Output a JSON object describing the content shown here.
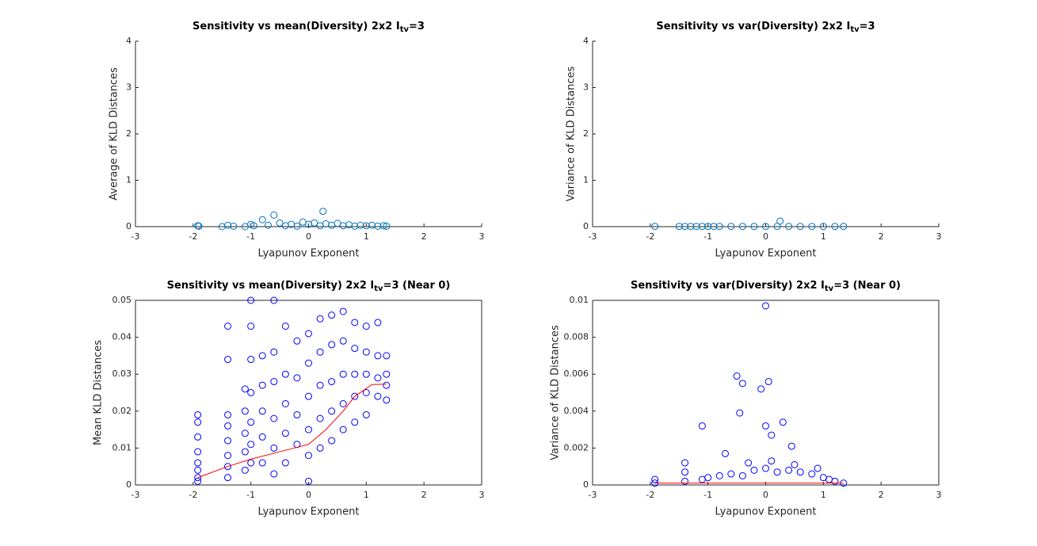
{
  "chart_data": [
    {
      "type": "scatter",
      "title": [
        "Sensitivity vs mean(Diversity) 2x2 I",
        "tv",
        "=3"
      ],
      "xlabel": "Lyapunov Exponent",
      "ylabel": "Average of KLD Distances",
      "xlim": [
        -3,
        3
      ],
      "ylim": [
        0,
        4
      ],
      "xticks": [
        -3,
        -2,
        -1,
        0,
        1,
        2,
        3
      ],
      "yticks": [
        0,
        1,
        2,
        3,
        4
      ],
      "box": false,
      "series": [
        {
          "color": "#0072bd",
          "marker": "circle",
          "x": [
            -1.92,
            -1.9,
            -1.5,
            -1.4,
            -1.3,
            -1.1,
            -1.0,
            -0.95,
            -0.8,
            -0.7,
            -0.6,
            -0.5,
            -0.4,
            -0.3,
            -0.2,
            -0.1,
            0,
            0.1,
            0.2,
            0.25,
            0.3,
            0.4,
            0.5,
            0.6,
            0.7,
            0.8,
            0.9,
            1.0,
            1.1,
            1.2,
            1.3,
            1.35
          ],
          "values": [
            0.02,
            0.01,
            0,
            0.03,
            0.01,
            0,
            0.05,
            0.02,
            0.15,
            0.03,
            0.25,
            0.08,
            0.02,
            0.05,
            0.01,
            0.1,
            0.05,
            0.08,
            0.02,
            0.33,
            0.06,
            0.03,
            0.07,
            0.02,
            0.04,
            0.01,
            0.03,
            0.02,
            0.03,
            0.01,
            0.02,
            0.01
          ]
        }
      ]
    },
    {
      "type": "scatter",
      "title": [
        "Sensitivity vs var(Diversity) 2x2 I",
        "tv",
        "=3"
      ],
      "xlabel": "Lyapunov Exponent",
      "ylabel": "Variance of KLD Distances",
      "xlim": [
        -3,
        3
      ],
      "ylim": [
        0,
        4
      ],
      "xticks": [
        -3,
        -2,
        -1,
        0,
        1,
        2,
        3
      ],
      "yticks": [
        0,
        1,
        2,
        3,
        4
      ],
      "box": false,
      "series": [
        {
          "color": "#0072bd",
          "marker": "circle",
          "x": [
            -1.92,
            -1.5,
            -1.4,
            -1.3,
            -1.2,
            -1.1,
            -1.0,
            -0.9,
            -0.8,
            -0.6,
            -0.4,
            -0.2,
            0,
            0.2,
            0.25,
            0.4,
            0.6,
            0.8,
            1.0,
            1.2,
            1.35
          ],
          "values": [
            0.005,
            0.005,
            0.005,
            0.005,
            0.005,
            0.005,
            0.005,
            0.005,
            0.005,
            0.005,
            0.005,
            0.005,
            0.005,
            0.005,
            0.12,
            0.005,
            0.005,
            0.005,
            0.005,
            0.005,
            0.005
          ]
        }
      ]
    },
    {
      "type": "scatter",
      "title": [
        "Sensitivity vs mean(Diversity) 2x2 I",
        "tv",
        "=3 (Near 0)"
      ],
      "xlabel": "Lyapunov Exponent",
      "ylabel": "Mean KLD Distances",
      "xlim": [
        -3,
        3
      ],
      "ylim": [
        0,
        0.05
      ],
      "xticks": [
        -3,
        -2,
        -1,
        0,
        1,
        2,
        3
      ],
      "yticks": [
        0,
        0.01,
        0.02,
        0.03,
        0.04,
        0.05
      ],
      "box": true,
      "series": [
        {
          "color": "#0000ff",
          "marker": "circle",
          "x": [
            -1.92,
            -1.92,
            -1.92,
            -1.92,
            -1.92,
            -1.92,
            -1.92,
            -1.92,
            -1.4,
            -1.4,
            -1.4,
            -1.4,
            -1.4,
            -1.4,
            -1.4,
            -1.4,
            -1.1,
            -1.1,
            -1.1,
            -1.1,
            -1.1,
            -1.0,
            -1.0,
            -1.0,
            -1.0,
            -1.0,
            -1.0,
            -1.0,
            -0.8,
            -0.8,
            -0.8,
            -0.8,
            -0.8,
            -0.6,
            -0.6,
            -0.6,
            -0.6,
            -0.6,
            -0.6,
            -0.4,
            -0.4,
            -0.4,
            -0.4,
            -0.4,
            -0.2,
            -0.2,
            -0.2,
            -0.2,
            0,
            0,
            0,
            0,
            0,
            0,
            0.2,
            0.2,
            0.2,
            0.2,
            0.2,
            0.4,
            0.4,
            0.4,
            0.4,
            0.4,
            0.6,
            0.6,
            0.6,
            0.6,
            0.6,
            0.8,
            0.8,
            0.8,
            0.8,
            0.8,
            1.0,
            1.0,
            1.0,
            1.0,
            1.0,
            1.2,
            1.2,
            1.2,
            1.2,
            1.35,
            1.35,
            1.35,
            1.35
          ],
          "values": [
            0.019,
            0.017,
            0.013,
            0.009,
            0.006,
            0.004,
            0.002,
            0.001,
            0.043,
            0.034,
            0.019,
            0.016,
            0.012,
            0.008,
            0.005,
            0.002,
            0.026,
            0.02,
            0.014,
            0.009,
            0.004,
            0.05,
            0.043,
            0.034,
            0.025,
            0.017,
            0.011,
            0.006,
            0.035,
            0.027,
            0.02,
            0.013,
            0.006,
            0.05,
            0.036,
            0.028,
            0.018,
            0.01,
            0.003,
            0.043,
            0.03,
            0.022,
            0.014,
            0.006,
            0.039,
            0.029,
            0.019,
            0.011,
            0.041,
            0.033,
            0.024,
            0.015,
            0.008,
            0.001,
            0.045,
            0.036,
            0.027,
            0.018,
            0.01,
            0.046,
            0.038,
            0.028,
            0.02,
            0.012,
            0.047,
            0.039,
            0.03,
            0.022,
            0.015,
            0.044,
            0.037,
            0.03,
            0.024,
            0.017,
            0.043,
            0.036,
            0.03,
            0.025,
            0.019,
            0.044,
            0.035,
            0.029,
            0.024,
            0.035,
            0.03,
            0.027,
            0.023
          ]
        },
        {
          "color": "#ff0000",
          "marker": "line",
          "x": [
            -1.92,
            -1.4,
            -1.0,
            -0.5,
            0,
            0.3,
            0.6,
            0.8,
            1.1,
            1.35
          ],
          "values": [
            0.002,
            0.005,
            0.007,
            0.009,
            0.011,
            0.015,
            0.02,
            0.024,
            0.0272,
            0.0273
          ]
        }
      ]
    },
    {
      "type": "scatter",
      "title": [
        "Sensitivity vs var(Diversity) 2x2 I",
        "tv",
        "=3 (Near 0)"
      ],
      "xlabel": "Lyapunov Exponent",
      "ylabel": "Variance of KLD Distances",
      "xlim": [
        -3,
        3
      ],
      "ylim": [
        0,
        0.01
      ],
      "xticks": [
        -3,
        -2,
        -1,
        0,
        1,
        2,
        3
      ],
      "yticks": [
        0,
        0.002,
        0.004,
        0.006,
        0.008,
        0.01
      ],
      "box": true,
      "series": [
        {
          "color": "#0000ff",
          "marker": "circle",
          "x": [
            -1.92,
            -1.92,
            -1.4,
            -1.4,
            -1.1,
            -1.0,
            -0.8,
            -0.6,
            -0.4,
            -0.2,
            0,
            0.2,
            0.4,
            0.6,
            0.8,
            1.0,
            1.2,
            1.35,
            -0.3,
            0.1,
            0.5,
            0.9,
            1.1,
            0,
            -0.5,
            -0.4,
            0.05,
            -0.08,
            -0.45,
            -1.1,
            0,
            0.3,
            0.1,
            0.45,
            -0.7,
            -1.4
          ],
          "values": [
            0.0003,
            0.0001,
            0.0007,
            0.0002,
            0.0003,
            0.0004,
            0.0005,
            0.0006,
            0.0005,
            0.0008,
            0.0009,
            0.0007,
            0.0008,
            0.0007,
            0.0006,
            0.0004,
            0.0002,
            0.0001,
            0.0012,
            0.0013,
            0.0011,
            0.0009,
            0.0003,
            0.0097,
            0.0059,
            0.0055,
            0.0056,
            0.0052,
            0.0039,
            0.0032,
            0.0032,
            0.0034,
            0.0027,
            0.0021,
            0.0017,
            0.0012
          ]
        },
        {
          "color": "#ff0000",
          "marker": "line",
          "x": [
            -1.92,
            -1.4,
            -1.0,
            -0.5,
            0,
            0.5,
            1.0,
            1.35
          ],
          "values": [
            0.0001,
            0.0001,
            0.0001,
            0.0001,
            0.0001,
            0.0001,
            0.0001,
            0.0001
          ]
        }
      ]
    }
  ]
}
